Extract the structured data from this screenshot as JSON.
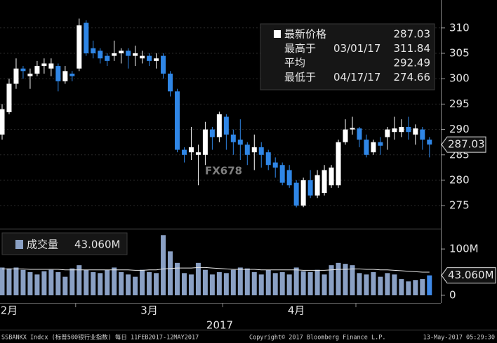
{
  "chart_data": [
    {
      "type": "candlestick",
      "up_color": "#ffffff",
      "down_color": "#2f86e6",
      "open": [
        289,
        293.4,
        299,
        302,
        300.5,
        301,
        302.5,
        302,
        302.5,
        299.5,
        301,
        302,
        311,
        306,
        305.5,
        304.5,
        304.5,
        305,
        305.5,
        304.5,
        304,
        304.5,
        303.5,
        304.5,
        301,
        297.5,
        286,
        285.5,
        285,
        285,
        290,
        288.5,
        292.5,
        289,
        288,
        287,
        285.5,
        286.5,
        285.5,
        283.5,
        283,
        282,
        279.5,
        275,
        280,
        277,
        277.5,
        279,
        279,
        287.5,
        290,
        290.2,
        288,
        285.5,
        287.5,
        288.5,
        289.5,
        289.5,
        290.5,
        289,
        290,
        288
      ],
      "high": [
        295,
        300,
        304,
        302.5,
        302,
        303.5,
        304,
        304,
        303,
        302.5,
        301.5,
        311.84,
        311.5,
        307.5,
        306,
        305,
        307.5,
        306,
        306,
        306.5,
        305.5,
        305,
        305,
        305,
        301.5,
        298,
        286.5,
        290.5,
        287,
        291.5,
        290.5,
        293.5,
        293,
        290,
        292,
        287.5,
        289,
        287.5,
        286,
        284.5,
        283.5,
        283,
        280,
        280.5,
        282,
        282,
        283,
        283,
        288,
        292,
        292.5,
        290.5,
        289,
        288,
        288.5,
        290.5,
        292.5,
        292,
        292.5,
        291,
        290.5,
        288.5
      ],
      "low": [
        288,
        293,
        298,
        300,
        298,
        300.5,
        301,
        300.5,
        297.5,
        299,
        299.5,
        301.5,
        304.5,
        304,
        303,
        302.5,
        303.5,
        303,
        302,
        302.5,
        303,
        302.5,
        302,
        300,
        296.5,
        285.5,
        283.5,
        284,
        279,
        283,
        286,
        287.5,
        286,
        285,
        284,
        283,
        282,
        282.5,
        282,
        280.5,
        279,
        278.5,
        274.66,
        274.7,
        276.5,
        276.5,
        277,
        278.5,
        278.5,
        287,
        289,
        286.5,
        284.5,
        285,
        285,
        286,
        288,
        288.5,
        288,
        287,
        286,
        284.5
      ],
      "close": [
        294,
        299,
        302,
        301.5,
        301,
        302.5,
        303,
        303,
        299.5,
        301.5,
        300.5,
        310.5,
        305,
        305,
        304,
        303.5,
        305,
        305.5,
        304.5,
        305,
        304.5,
        303.5,
        304,
        301,
        297.5,
        286,
        285,
        286.5,
        285.5,
        290,
        288.5,
        293,
        289,
        287.5,
        287,
        285,
        286.5,
        285,
        283,
        282.5,
        279.5,
        279,
        275,
        280,
        277,
        281,
        282,
        282.5,
        287.5,
        290,
        290.3,
        288,
        285,
        287.5,
        286.8,
        290,
        290.2,
        290.5,
        289.5,
        290.2,
        288,
        287.03
      ],
      "ylim": [
        270.6,
        315.5
      ],
      "yticks": [
        275,
        280,
        285,
        290,
        295,
        300,
        305,
        310
      ],
      "grid": true,
      "legend": [
        {
          "name": "最新价格",
          "value": 287.03
        },
        {
          "name": "最高于",
          "date": "03/01/17",
          "value": 311.84
        },
        {
          "name": "平均",
          "value": 292.49
        },
        {
          "name": "最低于",
          "date": "04/17/17",
          "value": 274.66
        }
      ],
      "watermark": "FX678"
    },
    {
      "type": "bar",
      "categories": [
        null,
        "2月",
        null,
        null,
        null,
        null,
        null,
        null,
        null,
        null,
        null,
        null,
        null,
        null,
        null,
        null,
        null,
        null,
        null,
        null,
        null,
        "3月",
        null,
        null,
        null,
        null,
        null,
        null,
        null,
        null,
        null,
        null,
        null,
        null,
        null,
        null,
        null,
        null,
        null,
        null,
        null,
        null,
        "4月",
        null,
        null,
        null,
        null,
        null,
        null,
        null,
        null,
        null,
        null,
        null,
        null,
        null,
        null,
        null,
        null,
        null,
        null,
        null
      ],
      "x_label": "2017",
      "series": [
        {
          "name": "成交量",
          "color": "#8aa0c4",
          "highlight_color": "#3f8ae8",
          "values": [
            60,
            58,
            60,
            55,
            50,
            45,
            52,
            55,
            50,
            40,
            58,
            65,
            55,
            50,
            48,
            55,
            60,
            50,
            45,
            40,
            55,
            50,
            48,
            130,
            95,
            70,
            48,
            45,
            70,
            55,
            45,
            50,
            48,
            55,
            60,
            58,
            50,
            45,
            55,
            48,
            50,
            45,
            60,
            52,
            50,
            55,
            45,
            65,
            70,
            68,
            65,
            48,
            45,
            50,
            40,
            48,
            45,
            35,
            30,
            33,
            35,
            43.06
          ],
          "last_value_label": "43.060M"
        },
        {
          "color": "#e8e8e8",
          "values": [
            57,
            57,
            57,
            57,
            56,
            56,
            56,
            56,
            56,
            55,
            55,
            55,
            55,
            55,
            55,
            55,
            55,
            55,
            55,
            54,
            54,
            55,
            55,
            57,
            58,
            59,
            59,
            59,
            60,
            60,
            59,
            58,
            57,
            56,
            56,
            56,
            56,
            55,
            55,
            55,
            55,
            55,
            55,
            54,
            54,
            54,
            54,
            55,
            56,
            56,
            57,
            57,
            56,
            56,
            55,
            55,
            54,
            53,
            52,
            51,
            50,
            50
          ]
        }
      ],
      "ylim": [
        -16.7,
        141
      ],
      "yticks": [
        0,
        {
          "value": 100,
          "label": "100M"
        }
      ]
    }
  ],
  "footer": {
    "left": "SSBANKX Indcx (标普500银行业指数)  每日 11FEB2017-12MAY2017",
    "center": "Copyright© 2017 Bloomberg Finance L.P.",
    "right": "13-May-2017 05:29:30"
  }
}
